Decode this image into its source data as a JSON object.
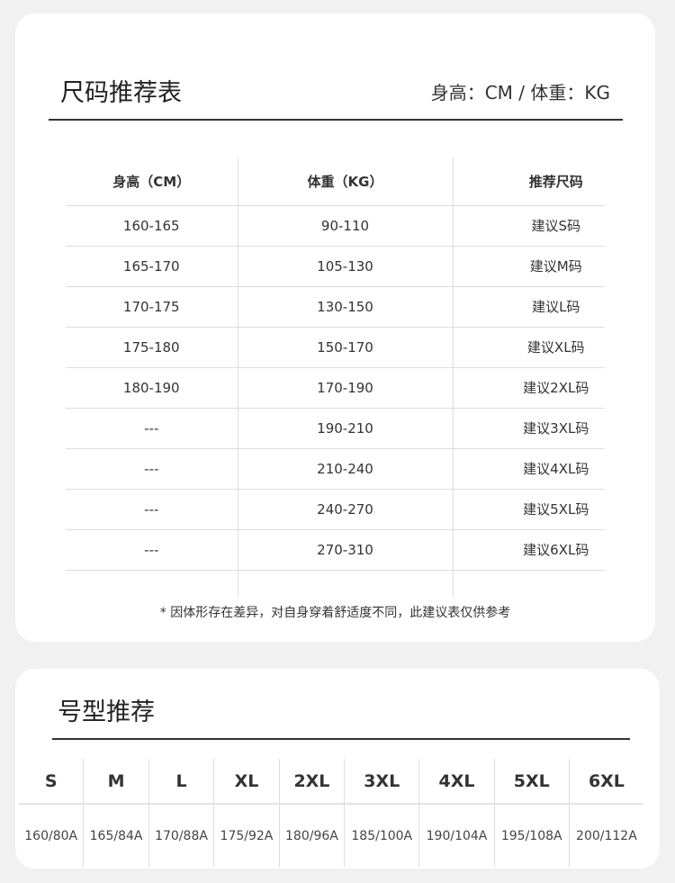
{
  "size_table": {
    "title": "尺码推荐表",
    "unit": "身高：CM / 体重：KG",
    "headers": [
      "身高（CM）",
      "体重（KG）",
      "推荐尺码"
    ],
    "rows": [
      [
        "160-165",
        "90-110",
        "建议S码"
      ],
      [
        "165-170",
        "105-130",
        "建议M码"
      ],
      [
        "170-175",
        "130-150",
        "建议L码"
      ],
      [
        "175-180",
        "150-170",
        "建议XL码"
      ],
      [
        "180-190",
        "170-190",
        "建议2XL码"
      ],
      [
        "---",
        "190-210",
        "建议3XL码"
      ],
      [
        "---",
        "210-240",
        "建议4XL码"
      ],
      [
        "---",
        "240-270",
        "建议5XL码"
      ],
      [
        "---",
        "270-310",
        "建议6XL码"
      ]
    ],
    "note": "* 因体形存在差异，对自身穿着舒适度不同，此建议表仅供参考"
  },
  "model_table": {
    "title": "号型推荐",
    "sizes": [
      "S",
      "M",
      "L",
      "XL",
      "2XL",
      "3XL",
      "4XL",
      "5XL",
      "6XL"
    ],
    "models": [
      "160/80A",
      "165/84A",
      "170/88A",
      "175/92A",
      "180/96A",
      "185/100A",
      "190/104A",
      "195/108A",
      "200/112A"
    ]
  }
}
